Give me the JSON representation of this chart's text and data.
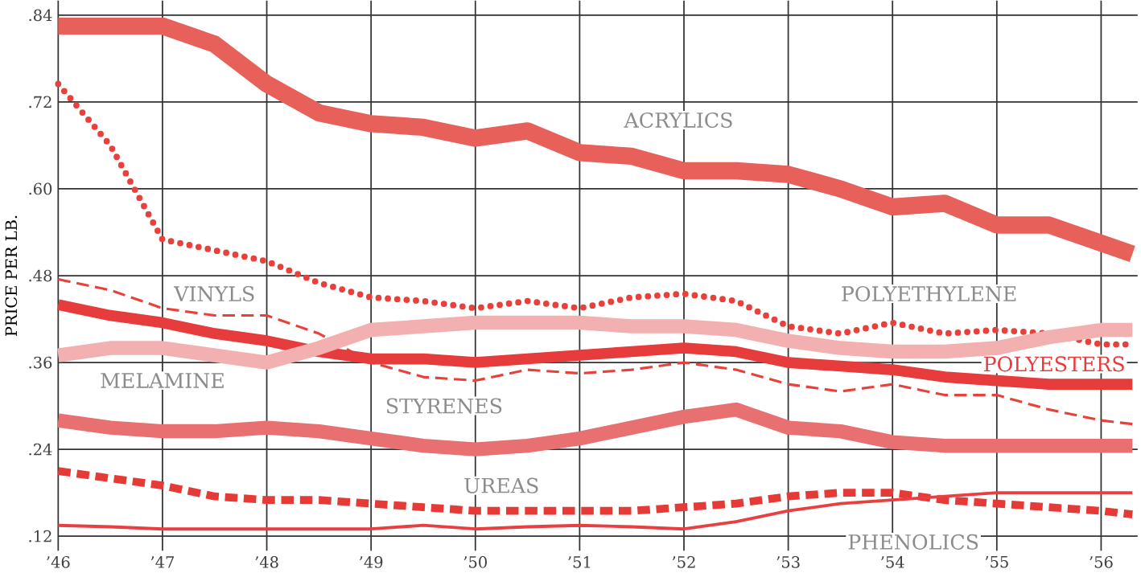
{
  "chart_data": {
    "type": "line",
    "ylabel": "PRICE PER LB.",
    "grid": true,
    "x": [
      1946,
      1946.5,
      1947,
      1947.5,
      1948,
      1948.5,
      1949,
      1949.5,
      1950,
      1950.5,
      1951,
      1951.5,
      1952,
      1952.5,
      1953,
      1953.5,
      1954,
      1954.5,
      1955,
      1955.5,
      1956,
      1956.3
    ],
    "xlim": [
      1946,
      1956.35
    ],
    "xticks": [
      {
        "value": 1946,
        "label": "’46"
      },
      {
        "value": 1947,
        "label": "’47"
      },
      {
        "value": 1948,
        "label": "’48"
      },
      {
        "value": 1949,
        "label": "’49"
      },
      {
        "value": 1950,
        "label": "’50"
      },
      {
        "value": 1951,
        "label": "’51"
      },
      {
        "value": 1952,
        "label": "’52"
      },
      {
        "value": 1953,
        "label": "’53"
      },
      {
        "value": 1954,
        "label": "’54"
      },
      {
        "value": 1955,
        "label": "’55"
      },
      {
        "value": 1956,
        "label": "’56"
      }
    ],
    "ylim": [
      0.1,
      0.86
    ],
    "yticks": [
      {
        "value": 0.12,
        "label": ".12"
      },
      {
        "value": 0.24,
        "label": ".24"
      },
      {
        "value": 0.36,
        "label": ".36"
      },
      {
        "value": 0.48,
        "label": ".48"
      },
      {
        "value": 0.6,
        "label": ".60"
      },
      {
        "value": 0.72,
        "label": ".72"
      },
      {
        "value": 0.84,
        "label": ".84"
      }
    ],
    "series": [
      {
        "name": "ACRYLICS",
        "color": "#e8605a",
        "line_style": "solid",
        "values": [
          0.825,
          0.825,
          0.825,
          0.8,
          0.745,
          0.705,
          0.69,
          0.685,
          0.67,
          0.68,
          0.65,
          0.645,
          0.625,
          0.625,
          0.62,
          0.6,
          0.575,
          0.58,
          0.55,
          0.55,
          0.525,
          0.51
        ]
      },
      {
        "name": "POLYETHYLENE",
        "color": "#e8403a",
        "line_style": "dotted",
        "values": [
          0.745,
          0.66,
          0.53,
          0.515,
          0.5,
          0.47,
          0.45,
          0.445,
          0.435,
          0.445,
          0.435,
          0.45,
          0.455,
          0.445,
          0.41,
          0.4,
          0.415,
          0.4,
          0.405,
          0.4,
          0.385,
          0.385
        ]
      },
      {
        "name": "VINYLS",
        "color": "#e8403a",
        "line_style": "dashed",
        "values": [
          0.475,
          0.46,
          0.435,
          0.425,
          0.425,
          0.4,
          0.36,
          0.34,
          0.335,
          0.35,
          0.345,
          0.35,
          0.36,
          0.35,
          0.33,
          0.32,
          0.33,
          0.315,
          0.315,
          0.295,
          0.28,
          0.275
        ]
      },
      {
        "name": "POLYESTERS",
        "color": "#e63c3c",
        "line_style": "solid",
        "values": [
          0.44,
          0.425,
          0.415,
          0.4,
          0.39,
          0.375,
          0.365,
          0.365,
          0.36,
          0.365,
          0.37,
          0.375,
          0.38,
          0.375,
          0.36,
          0.355,
          0.35,
          0.34,
          0.335,
          0.33,
          0.33,
          0.33
        ]
      },
      {
        "name": "MELAMINE",
        "color": "#f2b0b0",
        "line_style": "solid",
        "values": [
          0.37,
          0.38,
          0.38,
          0.37,
          0.36,
          0.38,
          0.405,
          0.41,
          0.415,
          0.415,
          0.415,
          0.41,
          0.41,
          0.405,
          0.39,
          0.38,
          0.375,
          0.375,
          0.38,
          0.395,
          0.405,
          0.405
        ]
      },
      {
        "name": "STYRENES",
        "color": "#e87070",
        "line_style": "solid",
        "values": [
          0.28,
          0.27,
          0.265,
          0.265,
          0.27,
          0.265,
          0.255,
          0.245,
          0.24,
          0.245,
          0.255,
          0.27,
          0.285,
          0.295,
          0.27,
          0.265,
          0.25,
          0.245,
          0.245,
          0.245,
          0.245,
          0.245
        ]
      },
      {
        "name": "UREAS",
        "color": "#e53a35",
        "line_style": "dashed",
        "values": [
          0.21,
          0.2,
          0.19,
          0.175,
          0.17,
          0.17,
          0.165,
          0.16,
          0.155,
          0.155,
          0.155,
          0.155,
          0.16,
          0.165,
          0.175,
          0.18,
          0.18,
          0.17,
          0.165,
          0.16,
          0.155,
          0.15
        ]
      },
      {
        "name": "PHENOLICS",
        "color": "#e84040",
        "line_style": "solid",
        "values": [
          0.135,
          0.133,
          0.13,
          0.13,
          0.13,
          0.13,
          0.13,
          0.135,
          0.13,
          0.133,
          0.135,
          0.133,
          0.13,
          0.14,
          0.155,
          0.165,
          0.17,
          0.175,
          0.18,
          0.18,
          0.18,
          0.18
        ]
      }
    ]
  }
}
